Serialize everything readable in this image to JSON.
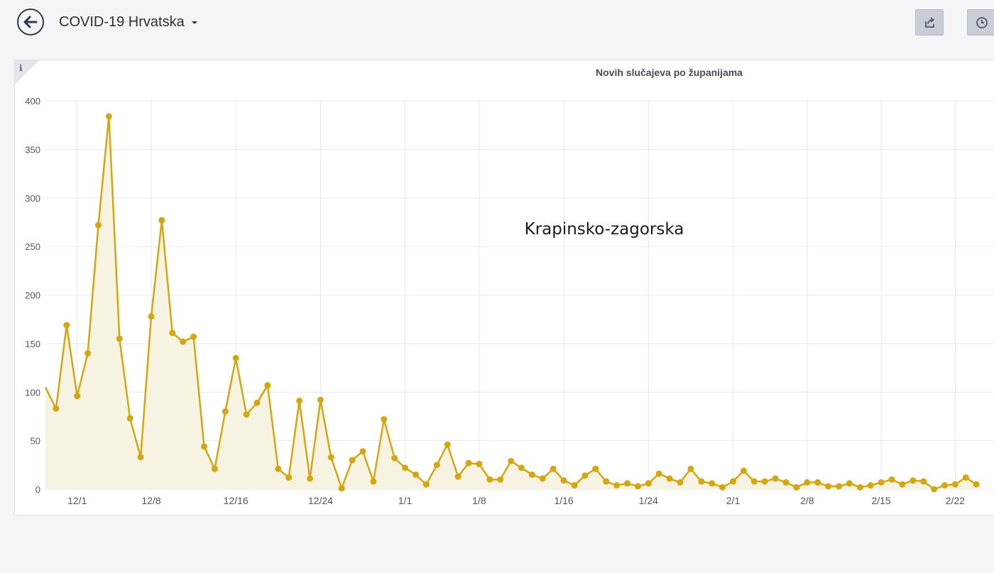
{
  "header": {
    "title": "COVID-19 Hrvatska",
    "back_icon": "arrow-left-icon",
    "share_icon": "share-icon",
    "time_icon": "clock-icon"
  },
  "panel": {
    "title": "Novih slučajeva po županijama",
    "info_label": "i"
  },
  "chart_data": {
    "type": "area",
    "title": "Novih slučajeva po županijama",
    "annotation": "Krapinsko-zagorska",
    "ylim": [
      0,
      400
    ],
    "yticks": [
      0,
      50,
      100,
      150,
      200,
      250,
      300,
      350,
      400
    ],
    "xtick_labels": [
      "12/1",
      "12/8",
      "12/16",
      "12/24",
      "1/1",
      "1/8",
      "1/16",
      "1/24",
      "2/1",
      "2/8",
      "2/15",
      "2/22"
    ],
    "xtick_index": [
      3,
      10,
      18,
      26,
      34,
      41,
      49,
      57,
      65,
      72,
      79,
      86
    ],
    "grid": true,
    "color": "#d4a60f",
    "fill_color": "#f7f3e3",
    "series": [
      {
        "values": [
          105,
          83,
          169,
          96,
          140,
          272,
          384,
          155,
          73,
          33,
          178,
          277,
          161,
          152,
          157,
          44,
          21,
          80,
          135,
          77,
          89,
          107,
          21,
          12,
          91,
          11,
          92,
          33,
          1,
          30,
          39,
          8,
          72,
          32,
          22,
          15,
          5,
          25,
          46,
          13,
          27,
          26,
          10,
          10,
          29,
          22,
          15,
          11,
          21,
          9,
          4,
          14,
          21,
          8,
          4,
          6,
          3,
          6,
          16,
          11,
          7,
          21,
          8,
          6,
          2,
          8,
          19,
          8,
          8,
          11,
          7,
          2,
          7,
          7,
          3,
          3,
          6,
          2,
          4,
          7,
          10,
          5,
          9,
          8,
          0,
          4,
          5,
          12,
          5
        ]
      }
    ]
  }
}
